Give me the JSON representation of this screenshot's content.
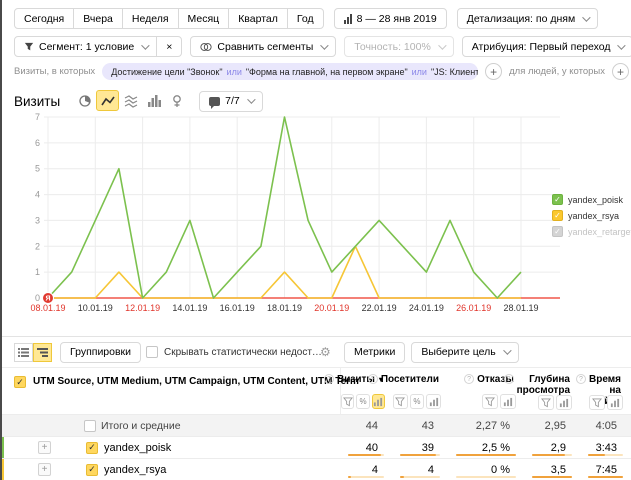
{
  "glyphs": {
    "plus": "+",
    "close": "×",
    "check": "✓",
    "question": "?",
    "gear": "⚙",
    "sort_desc": "▾",
    "percent": "%"
  },
  "toolbar_row1": {
    "periods": [
      "Сегодня",
      "Вчера",
      "Неделя",
      "Месяц",
      "Квартал",
      "Год"
    ],
    "date_range": "8 — 28 янв 2019",
    "detalization": "Детализация: по дням"
  },
  "toolbar_row2": {
    "segment": "Сегмент: 1 условие",
    "compare": "Сравнить сегменты",
    "accuracy": "Точность: 100%",
    "attribution": "Атрибуция: Первый переход"
  },
  "filter_bar": {
    "visits_label": "Визиты, в которых",
    "condition_parts": [
      "Достижение цели \"Звонок\"",
      "\"Форма на главной, на первом экране\"",
      "\"JS: Клиент отправил оффлайн-сообщение.\""
    ],
    "or_word": "или",
    "people_label": "для людей, у которых"
  },
  "chart_header": {
    "title": "Визиты",
    "chart_type_icons": [
      "pie-chart",
      "line-chart",
      "stacked-lines",
      "columns",
      "map-pin"
    ],
    "selected_icon": "line-chart",
    "goals_counter": "7/7"
  },
  "chart_data": {
    "type": "line",
    "title": "Визиты",
    "x": [
      "08.01.19",
      "09.01.19",
      "10.01.19",
      "11.01.19",
      "12.01.19",
      "13.01.19",
      "14.01.19",
      "15.01.19",
      "16.01.19",
      "17.01.19",
      "18.01.19",
      "19.01.19",
      "20.01.19",
      "21.01.19",
      "22.01.19",
      "23.01.19",
      "24.01.19",
      "25.01.19",
      "26.01.19",
      "27.01.19",
      "28.01.19"
    ],
    "x_ticks": [
      {
        "label": "08.01.19",
        "red": true
      },
      {
        "label": "10.01.19",
        "red": false
      },
      {
        "label": "12.01.19",
        "red": true
      },
      {
        "label": "14.01.19",
        "red": false
      },
      {
        "label": "16.01.19",
        "red": false
      },
      {
        "label": "18.01.19",
        "red": false
      },
      {
        "label": "20.01.19",
        "red": true
      },
      {
        "label": "22.01.19",
        "red": false
      },
      {
        "label": "24.01.19",
        "red": false
      },
      {
        "label": "26.01.19",
        "red": true
      },
      {
        "label": "28.01.19",
        "red": false
      }
    ],
    "ylim": [
      0,
      7
    ],
    "y_ticks": [
      0,
      1,
      2,
      3,
      4,
      5,
      6,
      7
    ],
    "grid": true,
    "legend_position": "right",
    "baseline_color": "#f0564a",
    "marker": {
      "x": "08.01.19",
      "label": "Я",
      "color": "#e13a30"
    },
    "series": [
      {
        "name": "yandex_poisk",
        "color": "#7cc14e",
        "visible": true,
        "values": [
          0,
          1,
          3,
          5,
          0,
          1,
          3,
          0,
          1,
          2,
          7,
          3,
          1,
          2,
          3,
          2,
          1,
          3,
          1,
          0,
          1
        ]
      },
      {
        "name": "yandex_rsya",
        "color": "#f6c636",
        "visible": true,
        "values": [
          0,
          0,
          0,
          1,
          0,
          0,
          0,
          0,
          0,
          0,
          1,
          0,
          0,
          2,
          0,
          0,
          0,
          0,
          0,
          0,
          0
        ]
      },
      {
        "name": "yandex_retarget",
        "color": "#c9c9c9",
        "visible": false,
        "values": null
      }
    ]
  },
  "table": {
    "toolbar": {
      "groupings_btn": "Группировки",
      "hide_label": "Скрывать статистически недостоверные данн...",
      "metrics_btn": "Метрики",
      "goal_select": "Выберите цель"
    },
    "dimension_header": "UTM Source, UTM Medium, UTM Campaign, UTM Content, UTM Term",
    "columns": [
      {
        "label": "Визиты",
        "sort": "desc",
        "filters": [
          "funnel",
          "percent",
          "bars"
        ],
        "active_filter": "bars"
      },
      {
        "label": "Посетители",
        "sort": null,
        "filters": [
          "funnel",
          "percent",
          "bars"
        ],
        "active_filter": null
      },
      {
        "label": "Отказы",
        "sort": null,
        "filters": [
          "funnel",
          "bars"
        ],
        "active_filter": null
      },
      {
        "label": "Глубина просмотра",
        "sort": null,
        "filters": [
          "funnel",
          "bars"
        ],
        "active_filter": null
      },
      {
        "label": "Время на сайте",
        "sort": null,
        "filters": [
          "funnel",
          "bars"
        ],
        "active_filter": null
      }
    ],
    "totals_row": {
      "label": "Итого и средние",
      "values": [
        "44",
        "43",
        "2,27 %",
        "2,95",
        "4:05"
      ]
    },
    "rows": [
      {
        "label": "yandex_poisk",
        "stripe_color": "#7cc14e",
        "checked": true,
        "values": [
          "40",
          "39",
          "2,5 %",
          "2,9",
          "3:43"
        ],
        "bars": [
          0.91,
          0.91,
          1,
          0.83,
          0.48
        ]
      },
      {
        "label": "yandex_rsya",
        "stripe_color": "#f6c636",
        "checked": true,
        "values": [
          "4",
          "4",
          "0 %",
          "3,5",
          "7:45"
        ],
        "bars": [
          0.09,
          0.09,
          0,
          1,
          1
        ]
      }
    ]
  }
}
